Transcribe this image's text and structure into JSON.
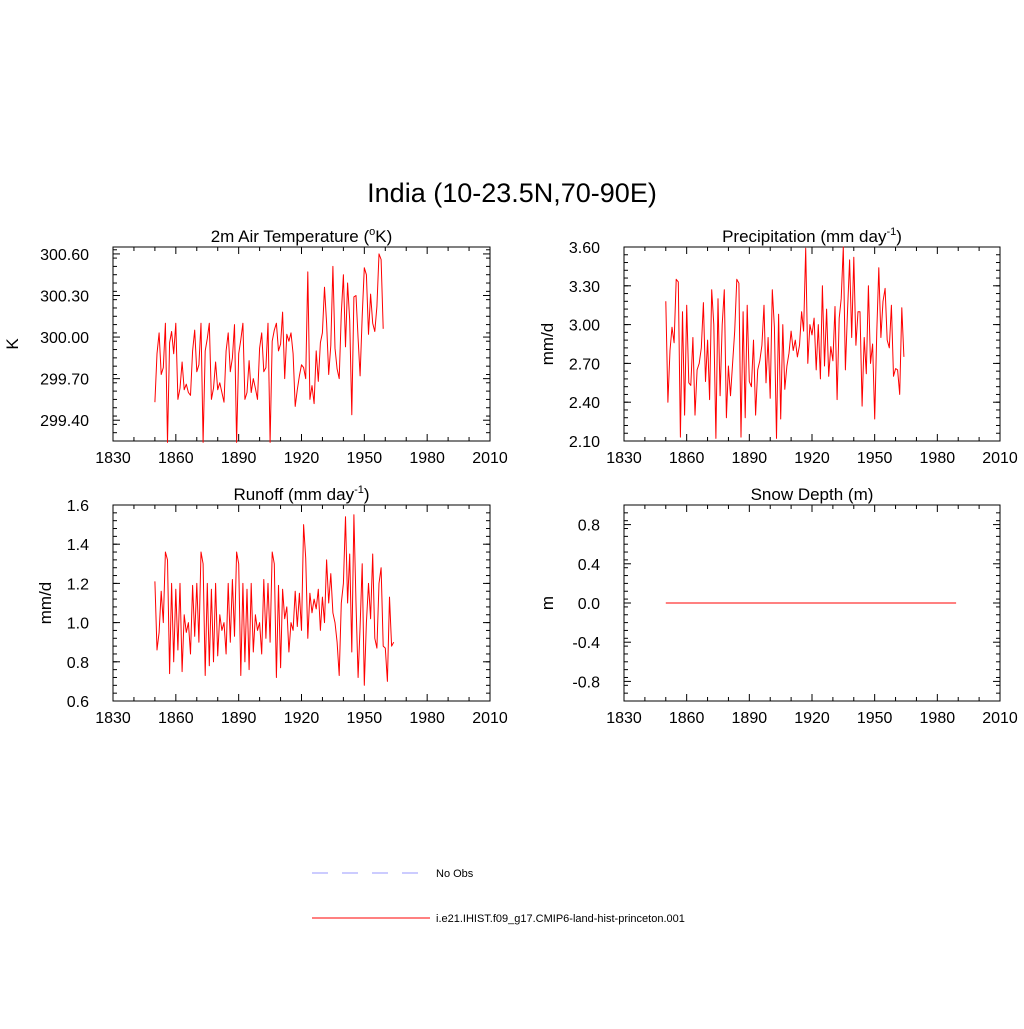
{
  "page_title": "India (10-23.5N,70-90E)",
  "colors": {
    "model": "#ff0000",
    "obs": "#9999ff",
    "axis": "#000000"
  },
  "legend": {
    "obs_label": "No Obs",
    "model_label": "i.e21.IHIST.f09_g17.CMIP6-land-hist-princeton.001"
  },
  "chart_data": [
    {
      "type": "line",
      "title_main": "2m Air Temperature (",
      "title_sup_pre": "o",
      "title_post": "K)",
      "ylabel": "K",
      "xlim": [
        1830,
        2010
      ],
      "ylim": [
        299.25,
        300.65
      ],
      "xticks": [
        1830,
        1860,
        1890,
        1920,
        1950,
        1980,
        2010
      ],
      "yticks": [
        {
          "v": 299.4,
          "label": "299.40"
        },
        {
          "v": 299.7,
          "label": "299.70"
        },
        {
          "v": 300.0,
          "label": "300.00"
        },
        {
          "v": 300.3,
          "label": "300.30"
        },
        {
          "v": 300.6,
          "label": "300.60"
        }
      ],
      "x_start": 1850,
      "values": [
        299.53,
        299.88,
        300.03,
        299.73,
        299.78,
        300.1,
        299.24,
        299.96,
        300.04,
        299.88,
        300.1,
        299.55,
        299.63,
        299.82,
        299.62,
        299.66,
        299.6,
        299.58,
        299.9,
        300.05,
        299.75,
        299.8,
        300.1,
        299.24,
        299.9,
        299.99,
        300.1,
        299.55,
        299.63,
        299.82,
        299.62,
        299.67,
        299.6,
        299.53,
        299.9,
        300.03,
        299.75,
        299.85,
        300.09,
        299.24,
        299.88,
        299.98,
        300.1,
        299.55,
        299.6,
        299.83,
        299.6,
        299.7,
        299.63,
        299.55,
        299.92,
        300.03,
        299.75,
        299.78,
        300.1,
        299.24,
        299.97,
        300.05,
        300.1,
        299.9,
        299.95,
        300.18,
        299.7,
        300.02,
        299.97,
        300.03,
        299.88,
        299.5,
        299.62,
        299.72,
        299.8,
        299.78,
        299.7,
        300.47,
        299.55,
        299.65,
        299.52,
        299.9,
        299.68,
        299.96,
        300.03,
        300.36,
        300.1,
        299.73,
        299.94,
        300.51,
        299.92,
        299.77,
        299.7,
        300.17,
        300.45,
        299.93,
        300.39,
        300.12,
        299.44,
        300.29,
        300.3,
        299.99,
        299.72,
        300.15,
        300.5,
        300.45,
        300.02,
        300.31,
        300.1,
        300.04,
        300.22,
        300.6,
        300.56,
        300.06
      ],
      "series_name": ""
    },
    {
      "type": "line",
      "title_main": "Precipitation (mm day",
      "title_sup": "-1",
      "title_post": ")",
      "ylabel": "mm/d",
      "xlim": [
        1830,
        2010
      ],
      "ylim": [
        2.1,
        3.6
      ],
      "xticks": [
        1830,
        1860,
        1890,
        1920,
        1950,
        1980,
        2010
      ],
      "yticks": [
        {
          "v": 2.1,
          "label": "2.10"
        },
        {
          "v": 2.4,
          "label": "2.40"
        },
        {
          "v": 2.7,
          "label": "2.70"
        },
        {
          "v": 3.0,
          "label": "3.00"
        },
        {
          "v": 3.3,
          "label": "3.30"
        },
        {
          "v": 3.6,
          "label": "3.60"
        }
      ],
      "x_start": 1850,
      "values": [
        3.18,
        2.4,
        2.8,
        2.98,
        2.86,
        3.35,
        3.33,
        2.13,
        3.1,
        2.3,
        3.15,
        2.55,
        2.53,
        2.9,
        2.3,
        2.65,
        2.7,
        2.82,
        3.17,
        2.56,
        2.88,
        2.42,
        3.27,
        3.0,
        2.12,
        3.2,
        2.45,
        3.0,
        3.27,
        2.28,
        2.68,
        2.45,
        2.7,
        2.95,
        3.35,
        3.32,
        2.13,
        3.1,
        2.28,
        3.15,
        2.56,
        2.52,
        2.88,
        2.3,
        2.65,
        2.72,
        2.84,
        3.15,
        2.55,
        2.9,
        2.43,
        3.27,
        2.98,
        2.12,
        3.08,
        2.27,
        3.0,
        2.5,
        2.68,
        2.78,
        2.95,
        2.8,
        2.88,
        2.75,
        2.84,
        3.1,
        2.95,
        3.59,
        2.7,
        3.0,
        2.92,
        3.05,
        2.65,
        3.0,
        2.58,
        3.3,
        2.68,
        3.12,
        2.6,
        2.83,
        2.72,
        3.14,
        2.42,
        3.05,
        3.2,
        3.6,
        2.65,
        3.1,
        3.5,
        2.9,
        3.52,
        2.84,
        3.1,
        3.1,
        2.37,
        2.9,
        2.62,
        3.3,
        2.7,
        2.85,
        2.27,
        2.95,
        3.44,
        2.9,
        3.18,
        3.28,
        2.88,
        2.82,
        3.15,
        2.6,
        2.66,
        2.65,
        2.46,
        3.13,
        2.75
      ],
      "series_name": ""
    },
    {
      "type": "line",
      "title_main": "Runoff (mm day",
      "title_sup": "-1",
      "title_post": ")",
      "ylabel": "mm/d",
      "xlim": [
        1830,
        2010
      ],
      "ylim": [
        0.6,
        1.6
      ],
      "xticks": [
        1830,
        1860,
        1890,
        1920,
        1950,
        1980,
        2010
      ],
      "yticks": [
        {
          "v": 0.6,
          "label": "0.6"
        },
        {
          "v": 0.8,
          "label": "0.8"
        },
        {
          "v": 1.0,
          "label": "1.0"
        },
        {
          "v": 1.2,
          "label": "1.2"
        },
        {
          "v": 1.4,
          "label": "1.4"
        },
        {
          "v": 1.6,
          "label": "1.6"
        }
      ],
      "x_start": 1850,
      "values": [
        1.21,
        0.86,
        0.95,
        1.16,
        1.0,
        1.36,
        1.32,
        0.74,
        1.2,
        0.8,
        1.17,
        0.86,
        1.2,
        0.75,
        1.04,
        0.95,
        1.0,
        0.84,
        1.19,
        0.93,
        1.2,
        0.9,
        1.36,
        1.3,
        0.73,
        1.2,
        0.78,
        1.17,
        0.8,
        1.2,
        0.83,
        1.04,
        0.96,
        1.0,
        0.84,
        1.2,
        0.9,
        1.22,
        0.93,
        1.36,
        1.3,
        0.73,
        1.2,
        0.8,
        1.17,
        0.76,
        1.2,
        0.85,
        1.04,
        0.96,
        1.0,
        0.84,
        1.22,
        0.92,
        1.2,
        0.9,
        1.36,
        1.3,
        0.72,
        1.19,
        0.77,
        1.17,
        1.02,
        1.08,
        0.85,
        1.0,
        0.96,
        1.16,
        0.98,
        1.15,
        0.96,
        1.5,
        1.33,
        0.92,
        1.15,
        1.05,
        1.12,
        1.07,
        1.17,
        0.96,
        1.13,
        1.0,
        1.32,
        1.1,
        1.25,
        1.05,
        1.0,
        0.9,
        0.73,
        1.1,
        1.2,
        1.54,
        1.1,
        1.35,
        0.85,
        1.55,
        1.1,
        0.72,
        0.98,
        1.3,
        0.68,
        1.0,
        1.2,
        1.02,
        1.35,
        0.92,
        0.87,
        1.2,
        1.28,
        0.88,
        0.87,
        0.7,
        1.13,
        0.88,
        0.9
      ],
      "series_name": ""
    },
    {
      "type": "line",
      "title_main": "Snow Depth (m)",
      "ylabel": "m",
      "xlim": [
        1830,
        2010
      ],
      "ylim": [
        -1.0,
        1.0
      ],
      "xticks": [
        1830,
        1860,
        1890,
        1920,
        1950,
        1980,
        2010
      ],
      "yticks": [
        {
          "v": -0.8,
          "label": "-0.8"
        },
        {
          "v": -0.4,
          "label": "-0.4"
        },
        {
          "v": 0.0,
          "label": "0.0"
        },
        {
          "v": 0.4,
          "label": "0.4"
        },
        {
          "v": 0.8,
          "label": "0.8"
        }
      ],
      "x_start": 1850,
      "x_end": 1989,
      "constant": 0.0,
      "series_name": ""
    }
  ]
}
